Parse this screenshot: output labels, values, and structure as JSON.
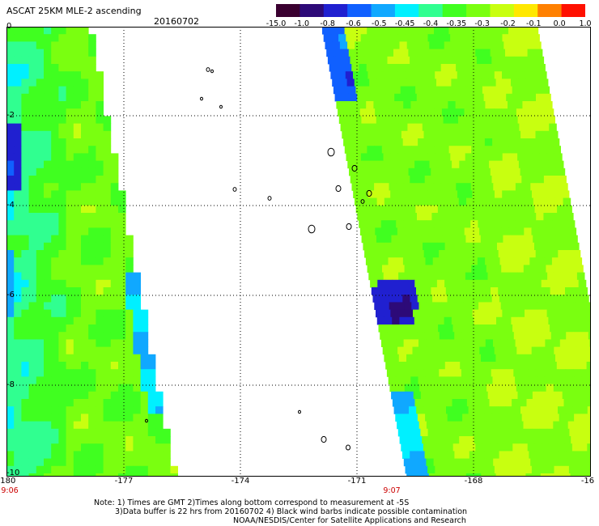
{
  "header": {
    "title": "ASCAT 25KM MLE-2 ascending",
    "date": "20160702"
  },
  "colorbar": {
    "labels": [
      "-15.0",
      "-1.0",
      "-0.8",
      "-0.6",
      "-0.5",
      "-0.45",
      "-0.4",
      "-0.35",
      "-0.3",
      "-0.2",
      "-0.1",
      "0.0",
      "1.0"
    ],
    "colors": [
      "#3a0030",
      "#2d0a78",
      "#2020d0",
      "#1060ff",
      "#10a8ff",
      "#00f0ff",
      "#30ff90",
      "#40ff20",
      "#7aff10",
      "#c8ff10",
      "#ffe800",
      "#ff8000",
      "#ff1000"
    ]
  },
  "map": {
    "xaxis": {
      "ticks": [
        "-180",
        "-177",
        "-174",
        "-171",
        "-168",
        "-16"
      ]
    },
    "yaxis": {
      "ticks": [
        "0",
        "-2",
        "-4",
        "-6",
        "-8",
        "-10"
      ]
    },
    "pass_times": [
      "9:06",
      "9:07"
    ],
    "grid": true
  },
  "footer": {
    "note_line1": "Note: 1) Times are GMT 2)Times along bottom correspond to measurement at -5S",
    "note_line2": "3)Data buffer is 22 hrs from 20160702 4) Black wind barbs indicate possible contamination",
    "credit": "NOAA/NESDIS/Center for Satellite Applications and Research"
  }
}
